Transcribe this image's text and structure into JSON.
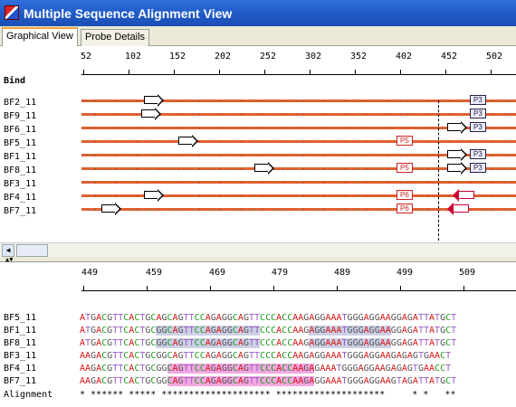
{
  "window": {
    "title": "Multiple Sequence Alignment View"
  },
  "tabs": [
    {
      "label": "Graphical View"
    },
    {
      "label": "Probe Details"
    }
  ],
  "graphical": {
    "ticks": [
      "52",
      "102",
      "152",
      "202",
      "252",
      "302",
      "352",
      "402",
      "452",
      "502"
    ],
    "bind_label": "Bind",
    "rows": [
      {
        "label": "BF2_11"
      },
      {
        "label": "BF9_11"
      },
      {
        "label": "BF6_11"
      },
      {
        "label": "BF5_11"
      },
      {
        "label": "BF1_11"
      },
      {
        "label": "BF8_11"
      },
      {
        "label": "BF3_11"
      },
      {
        "label": "BF4_11"
      },
      {
        "label": "BF7_11"
      }
    ],
    "markers": {
      "p3": "P3",
      "p5": "P5",
      "p6": "P6"
    }
  },
  "sequence": {
    "ticks": [
      "449",
      "459",
      "469",
      "479",
      "489",
      "499",
      "509"
    ],
    "rows": [
      {
        "label": "BF5_11",
        "seq": "ATGACGTTCACTGCAGCAGTTCCAGAGGCAGTTCCCACCAAGAGGAAATGGGAGGAAGGAGATTATGCT"
      },
      {
        "label": "BF1_11",
        "seq": "ATGACGTTCACTGCGGCAGTTCCAGAGGCAGTTCCCACCAAGAGGAAATGGGAGGAAGGAGATTATGCT"
      },
      {
        "label": "BF8_11",
        "seq": "ATGACGTTCACTGCGGCAGTTCCAGAGGCAGTTCCCACCAAGAGGAAATGGGAGGAAGGAGATTATGCT"
      },
      {
        "label": "BF3_11",
        "seq": "AAGACGTTCACTGCGGCAGTTCCAGAGGCAGTTCCCACCAAGAGGAAATGGGAGGAAGAGAGTGAACT"
      },
      {
        "label": "BF4_11",
        "seq": "AAGACGTTCACTGCGGCAGTTCCAGAGGCAGTTCCCACCAAGAGAAATGGGAGGAAGAGAGTGAACCT"
      },
      {
        "label": "BF7_11",
        "seq": "AAGACGTTCACTGCGGCAGTTCCAGAGGCAGTTCCCACCAAGAGGAAATGGGAGGAAGTAGATTATGCT"
      }
    ],
    "alignment_label": "Alignment",
    "alignment": "* ****** ***** ******************** ********************     * *   **"
  }
}
